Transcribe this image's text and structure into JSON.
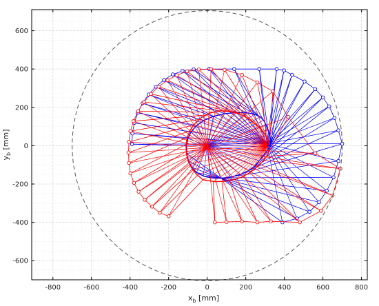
{
  "chart_data": {
    "type": "line",
    "xlabel": "x_b [mm]",
    "ylabel": "y_b [mm]",
    "xlabel_main": "x",
    "xlabel_sub": "b",
    "xlabel_unit": " [mm]",
    "ylabel_main": "y",
    "ylabel_sub": "b",
    "ylabel_unit": " [mm]",
    "xlim": [
      -910,
      830
    ],
    "ylim": [
      -700,
      710
    ],
    "xticks": [
      -800,
      -600,
      -400,
      -200,
      0,
      200,
      400,
      600,
      800
    ],
    "yticks": [
      -600,
      -400,
      -200,
      0,
      200,
      400,
      600
    ],
    "xtick_labels": [
      "-800",
      "-600",
      "-400",
      "-200",
      "0",
      "200",
      "400",
      "600",
      "800"
    ],
    "ytick_labels": [
      "-600",
      "-400",
      "-200",
      "0",
      "200",
      "400",
      "600"
    ],
    "grid": true,
    "minor_grid_step": 50,
    "workspace_circle": {
      "cx": 0,
      "cy": 0,
      "r": 700
    },
    "colors": {
      "series_a": "#0000ff",
      "series_b": "#ff0000",
      "circle": "#555555",
      "grid": "#d9d9d9"
    },
    "series": [
      {
        "color": "#0000ff",
        "outer_points": [
          [
            -108,
            0
          ],
          [
            -100,
            37
          ],
          [
            -84,
            72
          ],
          [
            -55,
            105
          ],
          [
            -17,
            132
          ],
          [
            32,
            153
          ],
          [
            90,
            167
          ],
          [
            150,
            173
          ],
          [
            204,
            172
          ],
          [
            246,
            164
          ],
          [
            275,
            150
          ],
          [
            293,
            132
          ],
          [
            305,
            110
          ],
          [
            315,
            82
          ],
          [
            325,
            52
          ],
          [
            330,
            23
          ],
          [
            325,
            -4
          ],
          [
            310,
            -28
          ],
          [
            290,
            -52
          ],
          [
            270,
            -78
          ],
          [
            248,
            -105
          ],
          [
            215,
            -130
          ],
          [
            172,
            -150
          ],
          [
            122,
            -164
          ],
          [
            70,
            -170
          ],
          [
            20,
            -168
          ],
          [
            -20,
            -158
          ],
          [
            -55,
            -140
          ],
          [
            -80,
            -113
          ],
          [
            -97,
            -80
          ],
          [
            -106,
            -42
          ]
        ],
        "tips": [
          [
            -390,
            8
          ],
          [
            -388,
            64
          ],
          [
            -378,
            119
          ],
          [
            -360,
            172
          ],
          [
            -335,
            221
          ],
          [
            -304,
            267
          ],
          [
            -266,
            308
          ],
          [
            -224,
            343
          ],
          [
            -178,
            372
          ],
          [
            -128,
            390
          ],
          [
            -70,
            398
          ],
          [
            10,
            400
          ],
          [
            140,
            400
          ],
          [
            270,
            400
          ],
          [
            360,
            400
          ],
          [
            398,
            393
          ],
          [
            440,
            370
          ],
          [
            505,
            335
          ],
          [
            560,
            295
          ],
          [
            600,
            252
          ],
          [
            632,
            205
          ],
          [
            660,
            145
          ],
          [
            680,
            80
          ],
          [
            700,
            10
          ],
          [
            680,
            -80
          ],
          [
            655,
            -165
          ],
          [
            620,
            -235
          ],
          [
            580,
            -295
          ],
          [
            530,
            -345
          ],
          [
            465,
            -380
          ],
          [
            390,
            -400
          ]
        ]
      },
      {
        "color": "#ff0000",
        "outer_points": [
          [
            -22,
            -178
          ],
          [
            -55,
            -150
          ],
          [
            -80,
            -118
          ],
          [
            -98,
            -82
          ],
          [
            -108,
            -42
          ],
          [
            -110,
            0
          ],
          [
            -104,
            42
          ],
          [
            -88,
            82
          ],
          [
            -62,
            118
          ],
          [
            -26,
            150
          ],
          [
            18,
            172
          ],
          [
            70,
            182
          ],
          [
            122,
            178
          ],
          [
            168,
            165
          ],
          [
            206,
            146
          ],
          [
            236,
            124
          ],
          [
            262,
            102
          ],
          [
            285,
            78
          ],
          [
            303,
            53
          ],
          [
            315,
            28
          ],
          [
            322,
            5
          ],
          [
            322,
            -20
          ],
          [
            314,
            -46
          ],
          [
            298,
            -70
          ],
          [
            276,
            -95
          ],
          [
            248,
            -120
          ],
          [
            216,
            -144
          ],
          [
            178,
            -164
          ],
          [
            136,
            -178
          ],
          [
            90,
            -186
          ],
          [
            40,
            -188
          ]
        ],
        "tips": [
          [
            -200,
            -368
          ],
          [
            -246,
            -350
          ],
          [
            -286,
            -318
          ],
          [
            -324,
            -282
          ],
          [
            -356,
            -240
          ],
          [
            -380,
            -194
          ],
          [
            -398,
            -144
          ],
          [
            -406,
            -90
          ],
          [
            -408,
            -36
          ],
          [
            -406,
            20
          ],
          [
            -398,
            76
          ],
          [
            -382,
            128
          ],
          [
            -358,
            180
          ],
          [
            -328,
            228
          ],
          [
            -292,
            270
          ],
          [
            -252,
            308
          ],
          [
            -206,
            342
          ],
          [
            -158,
            368
          ],
          [
            -104,
            388
          ],
          [
            -44,
            398
          ],
          [
            20,
            400
          ],
          [
            90,
            396
          ],
          [
            180,
            370
          ],
          [
            260,
            330
          ],
          [
            340,
            284
          ],
          [
            420,
            150
          ],
          [
            560,
            -40
          ],
          [
            690,
            -120
          ],
          [
            650,
            -260
          ],
          [
            590,
            -340
          ],
          [
            480,
            -400
          ],
          [
            330,
            -395
          ],
          [
            260,
            -400
          ],
          [
            180,
            -395
          ],
          [
            100,
            -398
          ],
          [
            40,
            -400
          ]
        ]
      }
    ]
  }
}
